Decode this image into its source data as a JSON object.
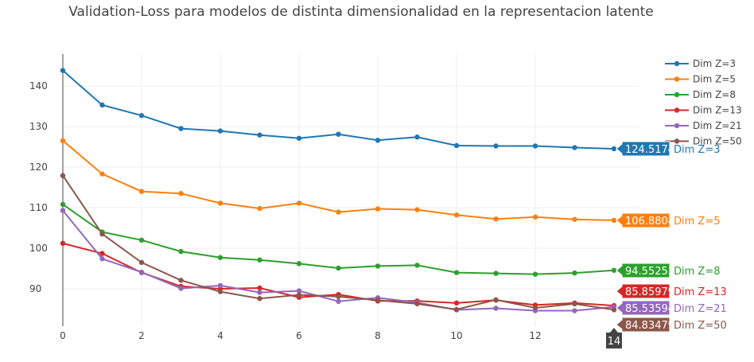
{
  "chart_data": {
    "type": "line",
    "title": "Validation-Loss para modelos de distinta dimensionalidad en la representacion latente",
    "xlabel": "",
    "ylabel": "",
    "xlim": [
      -0.2,
      14.6
    ],
    "ylim": [
      81,
      148.5
    ],
    "x_ticks": [
      "0",
      "2",
      "4",
      "6",
      "8",
      "10",
      "12"
    ],
    "y_ticks": [
      "90",
      "100",
      "110",
      "120",
      "130",
      "140"
    ],
    "grid": true,
    "legend_position": "right",
    "x": [
      0,
      1,
      2,
      3,
      4,
      5,
      6,
      7,
      8,
      9,
      10,
      11,
      12,
      13,
      14
    ],
    "series": [
      {
        "name": "Dim Z=3",
        "color": "#1f77b4",
        "values": [
          143.8,
          135.3,
          132.7,
          129.5,
          128.9,
          127.9,
          127.1,
          128.1,
          126.6,
          127.4,
          125.3,
          125.2,
          125.2,
          124.8,
          124.5174
        ]
      },
      {
        "name": "Dim Z=5",
        "color": "#ff7f0e",
        "values": [
          126.5,
          118.3,
          114.0,
          113.5,
          111.1,
          109.8,
          111.1,
          108.9,
          109.7,
          109.5,
          108.2,
          107.2,
          107.7,
          107.1,
          106.8804
        ]
      },
      {
        "name": "Dim Z=8",
        "color": "#2ca02c",
        "values": [
          110.8,
          104.0,
          102.0,
          99.2,
          97.7,
          97.1,
          96.2,
          95.1,
          95.6,
          95.8,
          94.0,
          93.8,
          93.6,
          93.9,
          94.55253
        ]
      },
      {
        "name": "Dim Z=13",
        "color": "#d62728",
        "values": [
          101.2,
          98.7,
          94.0,
          90.6,
          90.0,
          90.2,
          87.9,
          88.6,
          87.0,
          87.0,
          86.5,
          87.2,
          86.0,
          86.5,
          85.85979
        ]
      },
      {
        "name": "Dim Z=21",
        "color": "#9467bd",
        "values": [
          109.3,
          97.4,
          94.1,
          90.1,
          90.8,
          89.1,
          89.5,
          86.9,
          87.8,
          86.6,
          84.8,
          85.2,
          84.6,
          84.6,
          85.53594
        ]
      },
      {
        "name": "Dim Z=50",
        "color": "#8c564b",
        "values": [
          117.9,
          103.5,
          96.5,
          92.1,
          89.3,
          87.6,
          88.5,
          88.1,
          87.2,
          86.3,
          84.9,
          87.3,
          85.3,
          86.3,
          84.83479
        ]
      }
    ],
    "hover_x_label": "14",
    "hover_labels": [
      {
        "value": "124.5174",
        "name": "Dim Z=3"
      },
      {
        "value": "106.8804",
        "name": "Dim Z=5"
      },
      {
        "value": "94.55253",
        "name": "Dim Z=8"
      },
      {
        "value": "85.85979",
        "name": "Dim Z=13"
      },
      {
        "value": "85.53594",
        "name": "Dim Z=21"
      },
      {
        "value": "84.83479",
        "name": "Dim Z=50"
      }
    ]
  }
}
